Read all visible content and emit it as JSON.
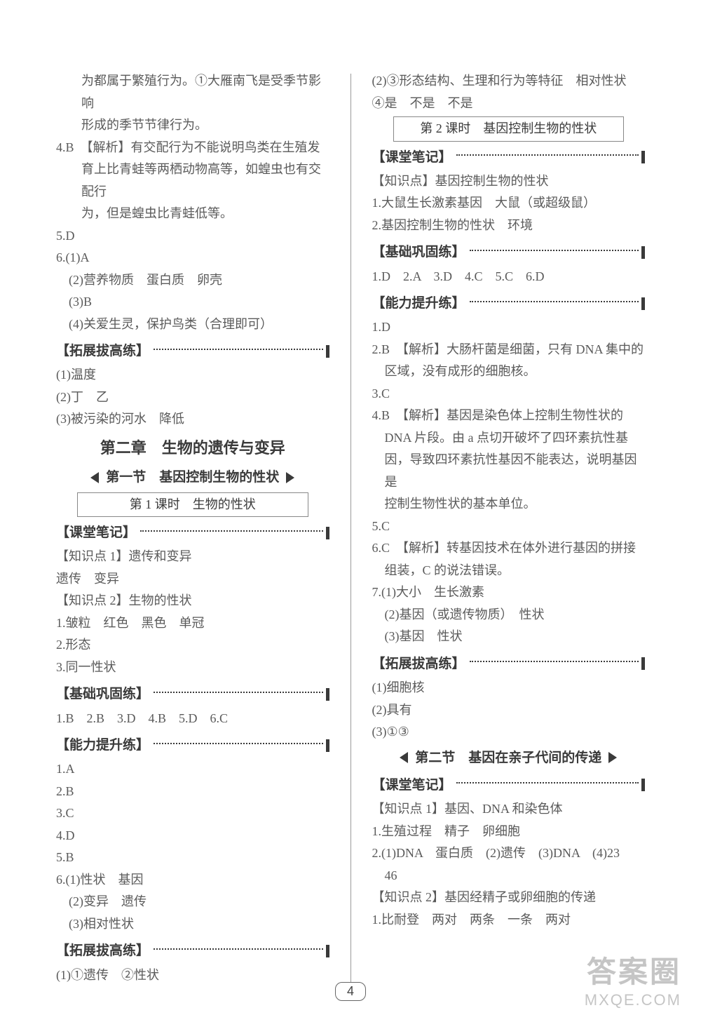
{
  "colors": {
    "text": "#5a5a5a",
    "heading": "#3a3a3a",
    "border": "#888888",
    "watermark": "rgba(140,140,140,0.5)",
    "background": "#ffffff"
  },
  "typography": {
    "body_fontsize": 18,
    "heading_fontsize": 19,
    "chapter_fontsize": 22,
    "line_height": 1.75,
    "body_font": "SimSun",
    "heading_font": "SimHei"
  },
  "left": {
    "p1a": "为都属于繁殖行为。①大雁南飞是受季节影响",
    "p1b": "形成的季节节律行为。",
    "p2a": "4.B　【解析】有交配行为不能说明鸟类在生殖发",
    "p2b": "育上比青蛙等两栖动物高等，如蝗虫也有交配行",
    "p2c": "为，但是蝗虫比青蛙低等。",
    "p3": "5.D",
    "p4": "6.(1)A",
    "p5": "(2)营养物质　蛋白质　卵壳",
    "p6": "(3)B",
    "p7": "(4)关爱生灵，保护鸟类（合理即可）",
    "sec1": "【拓展拔高练】",
    "p8": "(1)温度",
    "p9": "(2)丁　乙",
    "p10": "(3)被污染的河水　降低",
    "chapter": "第二章　生物的遗传与变异",
    "section": "第一节　基因控制生物的性状",
    "lesson": "第 1 课时　生物的性状",
    "sec2": "【课堂笔记】",
    "p11": "【知识点 1】遗传和变异",
    "p12": "遗传　变异",
    "p13": "【知识点 2】生物的性状",
    "p14": "1.皱粒　红色　黑色　单冠",
    "p15": "2.形态",
    "p16": "3.同一性状",
    "sec3": "【基础巩固练】",
    "p17": "1.B　2.B　3.D　4.B　5.D　6.C",
    "sec4": "【能力提升练】",
    "p18": "1.A",
    "p19": "2.B",
    "p20": "3.C",
    "p21": "4.D",
    "p22": "5.B",
    "p23": "6.(1)性状　基因",
    "p24": "(2)变异　遗传",
    "p25": "(3)相对性状",
    "sec5": "【拓展拔高练】",
    "p26": "(1)①遗传　②性状"
  },
  "right": {
    "p1": "(2)③形态结构、生理和行为等特征　相对性状",
    "p2": "④是　不是　不是",
    "lesson": "第 2 课时　基因控制生物的性状",
    "sec1": "【课堂笔记】",
    "p3": "【知识点】基因控制生物的性状",
    "p4": "1.大鼠生长激素基因　大鼠（或超级鼠）",
    "p5": "2.基因控制生物的性状　环境",
    "sec2": "【基础巩固练】",
    "p6": "1.D　2.A　3.D　4.C　5.C　6.D",
    "sec3": "【能力提升练】",
    "p7": "1.D",
    "p8a": "2.B　【解析】大肠杆菌是细菌，只有 DNA 集中的",
    "p8b": "区域，没有成形的细胞核。",
    "p9": "3.C",
    "p10a": "4.B　【解析】基因是染色体上控制生物性状的",
    "p10b": "DNA 片段。由 a 点切开破坏了四环素抗性基",
    "p10c": "因，导致四环素抗性基因不能表达，说明基因是",
    "p10d": "控制生物性状的基本单位。",
    "p11": "5.C",
    "p12a": "6.C　【解析】转基因技术在体外进行基因的拼接",
    "p12b": "组装，C 的说法错误。",
    "p13": "7.(1)大小　生长激素",
    "p14": "(2)基因（或遗传物质）　性状",
    "p15": "(3)基因　性状",
    "sec4": "【拓展拔高练】",
    "p16": "(1)细胞核",
    "p17": "(2)具有",
    "p18": "(3)①③",
    "section": "第二节　基因在亲子代间的传递",
    "sec5": "【课堂笔记】",
    "p19": "【知识点 1】基因、DNA 和染色体",
    "p20": "1.生殖过程　精子　卵细胞",
    "p21": "2.(1)DNA　蛋白质　(2)遗传　(3)DNA　(4)23",
    "p22": "46",
    "p23": "【知识点 2】基因经精子或卵细胞的传递",
    "p24": "1.比耐登　两对　两条　一条　两对"
  },
  "page_number": "4",
  "watermark": {
    "line1": "答案圈",
    "line2": "MXQE.COM"
  }
}
